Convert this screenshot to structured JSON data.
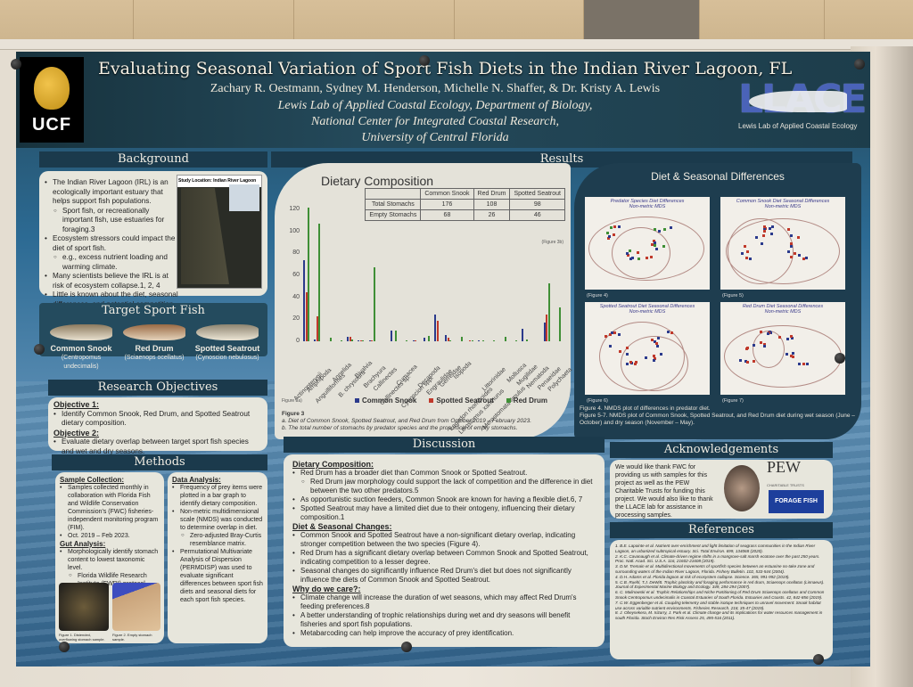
{
  "poster": {
    "title": "Evaluating Seasonal Variation of Sport Fish Diets in the Indian River Lagoon, FL",
    "authors": "Zachary R. Oestmann, Sydney M. Henderson, Michelle N. Shaffer, & Dr. Kristy A. Lewis",
    "affiliation_lines": [
      "Lewis Lab of Applied Coastal Ecology, Department of Biology,",
      "National Center for Integrated Coastal Research,",
      "University of Central Florida"
    ],
    "logo_left": "UCF",
    "logo_right": "LLACE",
    "logo_right_sub": "Lewis Lab of Applied Coastal Ecology"
  },
  "background": {
    "heading": "Background",
    "map_caption": "Study Location: Indian River Lagoon",
    "map_legend": "Indian River Lagoon",
    "bullets": [
      {
        "level": 1,
        "text": "The Indian River Lagoon (IRL) is an ecologically important estuary that helps support fish populations."
      },
      {
        "level": 2,
        "text": "Sport fish, or recreationally important fish, use estuaries for foraging.3"
      },
      {
        "level": 1,
        "text": "Ecosystem stressors could impact the diet of sport fish."
      },
      {
        "level": 2,
        "text": "e.g., excess nutrient loading and warming climate."
      },
      {
        "level": 1,
        "text": "Many scientists believe the IRL is at risk of ecosystem collapse.1, 2, 4"
      },
      {
        "level": 1,
        "text": "Little is known about the diet, seasonal differences, and potential competition between sport fish in the IRL."
      }
    ]
  },
  "target_fish": {
    "heading": "Target Sport Fish",
    "species": [
      {
        "name": "Common Snook",
        "scientific": "(Centropomus undecimalis)"
      },
      {
        "name": "Red Drum",
        "scientific": "(Sciaenops ocellatus)"
      },
      {
        "name": "Spotted Seatrout",
        "scientific": "(Cynoscion nebulosus)"
      }
    ]
  },
  "objectives": {
    "heading": "Research Objectives",
    "items": [
      {
        "label": "Objective 1:",
        "text": "Identify Common Snook, Red Drum, and Spotted Seatrout dietary composition."
      },
      {
        "label": "Objective 2:",
        "text": "Evaluate dietary overlap between target sport fish species and wet and dry seasons."
      }
    ]
  },
  "methods": {
    "heading": "Methods",
    "sample_collection": {
      "label": "Sample Collection:",
      "bullets": [
        "Samples collected monthly in collaboration with Florida Fish and Wildlife Conservation Commission's (FWC) fisheries-independent monitoring program (FIM).",
        "Oct. 2019 – Feb 2023."
      ]
    },
    "gut_analysis": {
      "label": "Gut Analysis:",
      "bullets": [
        "Morphologically identify stomach content to lowest taxonomic level.",
        "Florida Wildlife Research Institute (FWRI) protocol."
      ]
    },
    "figure1_caption": "Figure 1. Distended, overflowing stomach sample.",
    "figure2_caption": "Figure 2. Empty stomach sample.",
    "data_analysis": {
      "label": "Data Analysis:",
      "bullets": [
        "Frequency of prey items were plotted in a bar graph to identify dietary composition.",
        "Non-metric multidimensional scale (NMDS) was conducted to determine overlap in diet.",
        "Zero-adjusted Bray-Curtis resemblance matrix.",
        "Permutational Multivariate Analysis of Dispersion (PERMDISP) was used to evaluate significant differences between sport fish diets and seasonal diets for each sport fish species."
      ]
    }
  },
  "results": {
    "heading": "Results",
    "chart_title": "Dietary Composition",
    "table": {
      "headers": [
        "",
        "Common Snook",
        "Red Drum",
        "Spotted Seatrout"
      ],
      "rows": [
        [
          "Total Stomachs",
          "176",
          "108",
          "98"
        ],
        [
          "Empty Stomachs",
          "68",
          "26",
          "46"
        ]
      ],
      "caption": "(Figure 3b)"
    },
    "fig3a_label": "Figure 3a)",
    "figure3_caption_title": "Figure 3",
    "figure3_caption_a": "a. Diet of Common Snook, Spotted Seatrout, and Red Drum from October 2019 – February 2023.",
    "figure3_caption_b": "b. The total number of stomachs by predator species and the proportion of empty stomachs."
  },
  "chart_data": {
    "type": "bar",
    "title": "Dietary Composition",
    "xlabel": "",
    "ylabel": "",
    "ylim": [
      0,
      125
    ],
    "yticks": [
      0,
      20,
      40,
      60,
      80,
      100,
      120
    ],
    "legend_position": "bottom",
    "categories": [
      "Actinopterygii",
      "Amphipoda",
      "Anguilliformes",
      "Annelida",
      "B. chrysoura",
      "Bivalvia",
      "Brachyura",
      "Callinectes",
      "Callinectes sp.",
      "Cumacea",
      "Cynoscion spp.",
      "Decapoda",
      "Engraulidae",
      "Gerreidae",
      "Isopoda",
      "Lagodon rhomboides",
      "Leiostomus xanthurus",
      "Littorinidae",
      "Merostomata limulus",
      "Mollusca",
      "Mugilidae",
      "Nematoda",
      "Penaeidae",
      "Polychaeta"
    ],
    "series": [
      {
        "name": "Common Snook",
        "color": "#2b3a8c",
        "values": [
          74,
          2,
          0,
          0,
          4,
          1,
          1,
          0,
          10,
          0,
          1,
          3,
          24,
          6,
          0,
          0,
          1,
          0,
          0,
          0,
          11,
          0,
          17,
          0
        ]
      },
      {
        "name": "Spotted Seatrout",
        "color": "#c0392b",
        "values": [
          45,
          23,
          0,
          0,
          4,
          1,
          1,
          0,
          0,
          0,
          1,
          0,
          19,
          3,
          0,
          1,
          0,
          0,
          0,
          0,
          0,
          0,
          24,
          0
        ]
      },
      {
        "name": "Red Drum",
        "color": "#3f8f36",
        "values": [
          122,
          107,
          3,
          1,
          2,
          1,
          67,
          0,
          10,
          1,
          0,
          5,
          0,
          1,
          4,
          1,
          1,
          1,
          4,
          1,
          2,
          0,
          53,
          31
        ]
      }
    ]
  },
  "diet_seasonal": {
    "heading": "Diet & Seasonal Differences",
    "plots": [
      {
        "title": "Predator Species Diet Differences",
        "subtitle": "Non-metric MDS",
        "resemblance": "Resemblance: S17 Bray-Curtis similarity (+d)",
        "stress": "2D Stress: 0.17",
        "legend": [
          "Common Snook",
          "Spotted Seatrout",
          "Red Drum"
        ],
        "figure": "(Figure 4)"
      },
      {
        "title": "Common Snook Diet Seasonal Differences",
        "subtitle": "Non-metric MDS",
        "resemblance": "Resemblance: S17 Bray-Curtis similarity (+d)",
        "stress": "2D Stress: 0.14",
        "pvalue": "p-value: 0.560",
        "legend": [
          "Wet",
          "Dry"
        ],
        "figure": "(Figure 5)"
      },
      {
        "title": "Spotted Seatrout Diet Seasonal Differences",
        "subtitle": "Non-metric MDS",
        "resemblance": "Resemblance: S17 Bray-Curtis similarity (+d)",
        "stress": "2D Stress: 0.08",
        "pvalue": "p-value: 0.060",
        "legend": [
          "Wet",
          "Dry"
        ],
        "figure": "(Figure 6)"
      },
      {
        "title": "Red Drum Diet Seasonal Differences",
        "subtitle": "Non-metric MDS",
        "resemblance": "Resemblance: S17 Bray-Curtis similarity (+d)",
        "stress": "2D Stress: 0.16",
        "pvalue": "p-value: <0.001*",
        "legend": [
          "Wet",
          "Dry"
        ],
        "figure": "(Figure 7)"
      }
    ],
    "caption4": "Figure 4. NMDS plot of differences in predator diet.",
    "caption5_7": "Figure 5-7. NMDS plot of Common Snook, Spotted Seatrout, and Red Drum diet during wet season (June – October) and dry season (November – May)."
  },
  "discussion": {
    "heading": "Discussion",
    "sections": [
      {
        "label": "Dietary Composition:",
        "bullets": [
          {
            "level": 1,
            "text": "Red Drum has a broader diet than Common Snook or Spotted Seatrout."
          },
          {
            "level": 2,
            "text": "Red Drum jaw morphology could support the lack of competition and the difference in diet between the two other predators.5"
          },
          {
            "level": 1,
            "text": "As opportunistic suction feeders, Common Snook are known for having a flexible diet.6, 7"
          },
          {
            "level": 1,
            "text": "Spotted Seatrout may have a limited diet due to their ontogeny, influencing their dietary composition.1"
          }
        ]
      },
      {
        "label": "Diet & Seasonal Changes:",
        "bullets": [
          {
            "level": 1,
            "text": "Common Snook and Spotted Seatrout have a non-significant dietary overlap, indicating stronger competition between the two species (Figure 4)."
          },
          {
            "level": 1,
            "text": "Red Drum has a significant dietary overlap between Common Snook and Spotted Seatrout, indicating competition to a lesser degree."
          },
          {
            "level": 1,
            "text": "Seasonal changes do significantly influence Red Drum's diet but does not significantly influence the diets of Common Snook and Spotted Seatrout."
          }
        ]
      },
      {
        "label": "Why do we care?:",
        "bullets": [
          {
            "level": 1,
            "text": "Climate change will increase the duration of wet seasons, which may affect Red Drum's feeding preferences.8"
          },
          {
            "level": 1,
            "text": "A better understanding of trophic relationships during wet and dry seasons will benefit fisheries and sport fish populations."
          },
          {
            "level": 1,
            "text": "Metabarcoding can help improve the accuracy of prey identification."
          }
        ]
      }
    ]
  },
  "acknowledgements": {
    "heading": "Acknowledgements",
    "text": "We would like thank FWC for providing us with samples for this project as well as the PEW Charitable Trusts for funding this project. We would also like to thank the LLACE lab for assistance in processing samples.",
    "logos": [
      "FWC seal",
      "PEW Charitable Trusts",
      "Florida Forage Fish"
    ],
    "pew": "PEW",
    "pew_sub": "CHARITABLE TRUSTS",
    "forage": "FORAGE FISH"
  },
  "references": {
    "heading": "References",
    "items": [
      "1. B.E. Lapointe et al. Nutrient over-enrichment and light limitation of seagrass communities in the Indian River Lagoon, an urbanized subtropical estuary. Sci. Total Environ. 699, 134068 (2020).",
      "2. K.C. Cavanaugh et al. Climate-driven regime shifts in a mangrove-salt marsh ecotone over the past 250 years. Proc. Natl. Acad. Sci. U.S.A. 116, 21602-21608 (2019).",
      "3. D.M. Tremain et al. Multidirectional movements of sportfish species between an estuarine no-take zone and surrounding waters of the Indian River Lagoon, Florida. Fishery Bulletin. 102, 533-544 (2004).",
      "4. D.H. Adams et al. Florida lagoon at risk of ecosystem collapse. Science. 365, 991-992 (2019).",
      "5. C.B. Ruehl, T.J. DeWitt. Trophic plasticity and foraging performance in red drum, Sciaenops ocellatus (Linnaeus). Journal of Experimental Marine Biology and Ecology. 349, 284-294 (2007).",
      "6. C. Malinowski et al. Trophic Relationships and Niche Partitioning of Red Drum Sciaenops ocellatus and Common Snook Centropomus undecimalis in Coastal Estuaries of South Florida. Estuaries and Coasts. 42, 842-856 (2019).",
      "7. C.W. Eggenberger et al. Coupling telemetry and stable isotope techniques to unravel movement: Snook habitat use across variable nutrient environments. Fisheries Research. 218, 35-47 (2019).",
      "8. J. Obeysekera, M. Irizarry, J. Park et al. Climate change and its implications for water resources management in south Florida. Stoch Environ Res Risk Assess 25, 495-516 (2011)."
    ]
  }
}
